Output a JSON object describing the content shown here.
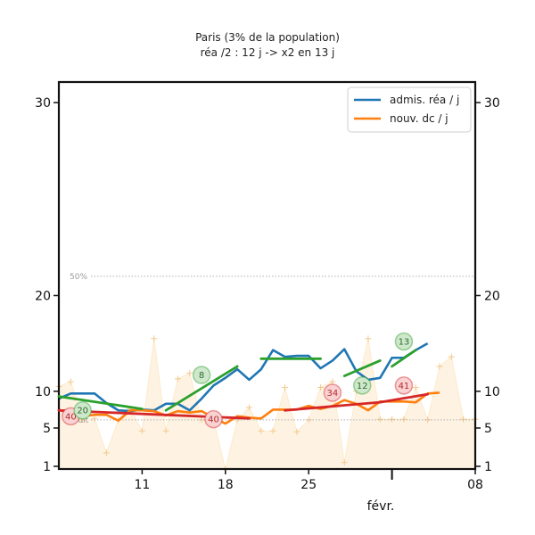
{
  "chart_data": {
    "type": "line",
    "title": "Paris (3% de la population)",
    "subtitle": "réa /2 : 12 j -> x2 en 13 j",
    "xlabel": "févr.",
    "ylabel": "",
    "x_ticks": [
      {
        "day": 11,
        "label": "11"
      },
      {
        "day": 18,
        "label": "18"
      },
      {
        "day": 25,
        "label": "25"
      },
      {
        "day": 39,
        "label": "08"
      }
    ],
    "xlim": [
      4,
      39
    ],
    "y_ticks": [
      1,
      5,
      10,
      20,
      30
    ],
    "y_scale": "sqrt",
    "ylim": [
      0,
      32
    ],
    "grid": false,
    "legend_position": "top-right",
    "reference_lines": [
      {
        "label": "50%",
        "y": 21
      },
      {
        "label": "bruit",
        "y": 6.1
      }
    ],
    "series": [
      {
        "name": "admis. réa / j",
        "color": "#1f77b4",
        "x": [
          4,
          5,
          6,
          7,
          8,
          9,
          10,
          11,
          12,
          13,
          14,
          15,
          16,
          17,
          18,
          19,
          20,
          21,
          22,
          23,
          24,
          25,
          26,
          27,
          28,
          29,
          30,
          31,
          32,
          33,
          34,
          35
        ],
        "values": [
          9,
          9.7,
          9.7,
          9.7,
          8.4,
          7.4,
          7.3,
          7.5,
          7.4,
          8.3,
          8.3,
          7.4,
          9,
          10.6,
          11.4,
          12.3,
          11.2,
          12.3,
          14.3,
          13.6,
          13.7,
          13.7,
          12.4,
          13.2,
          14.4,
          12.1,
          11.2,
          11.4,
          13.5,
          13.5,
          14.3,
          15
        ]
      },
      {
        "name": "nouv. dc / j",
        "color": "#ff7f0e",
        "x": [
          4,
          5,
          6,
          7,
          8,
          9,
          10,
          11,
          12,
          13,
          14,
          15,
          16,
          17,
          18,
          19,
          20,
          21,
          22,
          23,
          24,
          25,
          26,
          27,
          28,
          29,
          30,
          31,
          32,
          33,
          34,
          35,
          36
        ],
        "values": [
          7.5,
          6.9,
          6.6,
          6.8,
          6.8,
          6,
          7.4,
          7.4,
          7.3,
          6.7,
          7.3,
          7.1,
          7.3,
          6.4,
          5.6,
          6.6,
          6.4,
          6.3,
          7.5,
          7.5,
          7.5,
          8,
          7.6,
          8,
          8.8,
          8.3,
          7.4,
          8.6,
          8.6,
          8.6,
          8.5,
          9.7,
          9.8
        ]
      }
    ],
    "trend_segments": {
      "green": [
        {
          "x": [
            4,
            11
          ],
          "y": [
            9.3,
            7.6
          ]
        },
        {
          "x": [
            13,
            19
          ],
          "y": [
            7.4,
            12.6
          ]
        },
        {
          "x": [
            21,
            26
          ],
          "y": [
            13.4,
            13.4
          ]
        },
        {
          "x": [
            28,
            31
          ],
          "y": [
            11.6,
            13.2
          ]
        },
        {
          "x": [
            32,
            34
          ],
          "y": [
            12.6,
            14.3
          ]
        }
      ],
      "red": [
        {
          "x": [
            4,
            20
          ],
          "y": [
            7.4,
            6.3
          ]
        },
        {
          "x": [
            23,
            31
          ],
          "y": [
            7.4,
            8.5
          ]
        },
        {
          "x": [
            31,
            35
          ],
          "y": [
            8.5,
            9.6
          ]
        }
      ]
    },
    "background_area": {
      "color": "#fdeacb",
      "x": [
        4,
        5,
        6,
        7,
        8,
        9,
        10,
        11,
        12,
        13,
        14,
        15,
        16,
        17,
        18,
        19,
        20,
        21,
        22,
        23,
        24,
        25,
        26,
        27,
        28,
        29,
        30,
        31,
        32,
        33,
        34,
        35,
        36,
        37,
        38,
        39
      ],
      "values": [
        10.5,
        11,
        6.1,
        6.3,
        2.4,
        6.1,
        7.6,
        4.7,
        15.5,
        4.7,
        11.3,
        11.9,
        6.1,
        6.2,
        0.4,
        6.1,
        7.8,
        4.7,
        4.7,
        10.4,
        4.6,
        6.1,
        10.4,
        11,
        1.4,
        10,
        15.5,
        6.2,
        6.2,
        6.2,
        10.4,
        6.1,
        12.6,
        13.6,
        6.2,
        6.2
      ]
    },
    "badges": [
      {
        "x": 5,
        "y": 6.6,
        "label": "40",
        "kind": "red"
      },
      {
        "x": 6,
        "y": 7.4,
        "label": "20",
        "kind": "green"
      },
      {
        "x": 16,
        "y": 11.7,
        "label": "8",
        "kind": "green"
      },
      {
        "x": 17,
        "y": 6.2,
        "label": "40",
        "kind": "red"
      },
      {
        "x": 27,
        "y": 9.8,
        "label": "34",
        "kind": "red"
      },
      {
        "x": 29.5,
        "y": 10.6,
        "label": "12",
        "kind": "green"
      },
      {
        "x": 33,
        "y": 10.6,
        "label": "41",
        "kind": "red"
      },
      {
        "x": 33,
        "y": 15.2,
        "label": "13",
        "kind": "green"
      }
    ]
  },
  "badge_colors": {
    "green": {
      "fill": "#cfe8cc",
      "stroke": "#2ca02c",
      "text": "#2e6b2e"
    },
    "red": {
      "fill": "#f9d3d3",
      "stroke": "#d62728",
      "text": "#b52a2a"
    }
  },
  "trend_colors": {
    "green": "#2ca02c",
    "red": "#d62728"
  }
}
